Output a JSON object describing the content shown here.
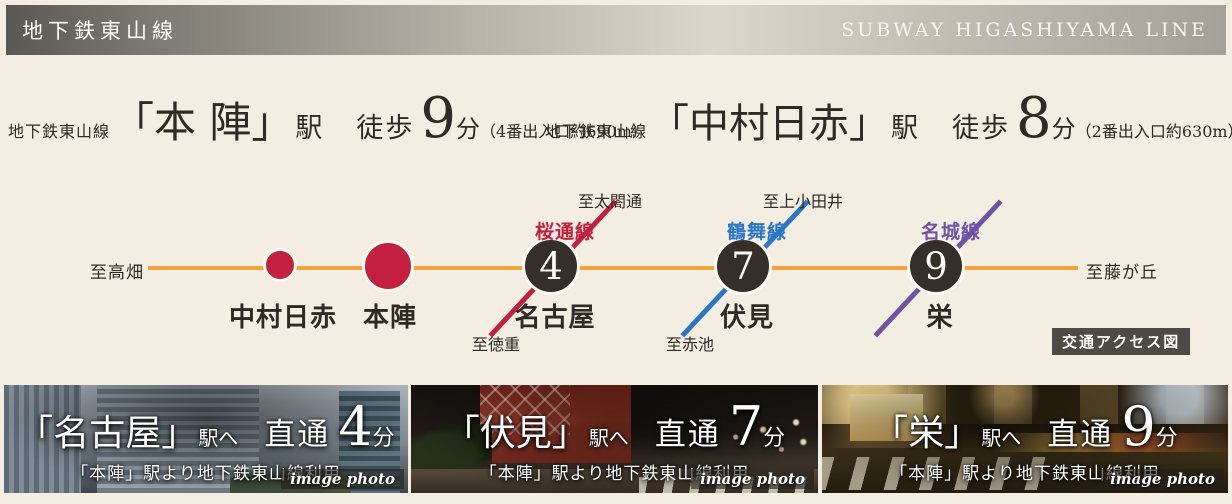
{
  "header": {
    "title_jp": "地下鉄東山線",
    "title_en": "SUBWAY HIGASHIYAMA LINE"
  },
  "access": [
    {
      "line_prefix": "地下鉄東山線",
      "station_name": "「本 陣」",
      "station_suffix": "駅",
      "walk": "徒歩",
      "minutes": "9",
      "unit": "分",
      "note": "（4番出入口約690m）"
    },
    {
      "line_prefix": "地下鉄東山線",
      "station_name": "「中村日赤」",
      "station_suffix": "駅",
      "walk": "徒歩",
      "minutes": "8",
      "unit": "分",
      "note": "（2番出入口約630m）"
    }
  ],
  "diagram": {
    "caption": "交通アクセス図",
    "terminal_left": "至高畑",
    "terminal_right": "至藤が丘",
    "main_line_color": "#f2a53c",
    "station_dot_red": "#c31f3e",
    "station_dot_dark": "#362e29",
    "stations": [
      {
        "name": "中村日赤"
      },
      {
        "name": "本陣"
      },
      {
        "name": "名古屋",
        "number": "4"
      },
      {
        "name": "伏見",
        "number": "7"
      },
      {
        "name": "栄",
        "number": "9"
      }
    ],
    "transfers": [
      {
        "line_name": "桜通線",
        "color": "#c31f3e",
        "to_upper": "至太閤通",
        "to_lower": "至徳重"
      },
      {
        "line_name": "鶴舞線",
        "color": "#2b76c7",
        "to_upper": "至上小田井",
        "to_lower": "至赤池"
      },
      {
        "line_name": "名城線",
        "color": "#7052a7"
      }
    ]
  },
  "cards": [
    {
      "station": "「名古屋」",
      "suffix": "駅へ",
      "direct_label": "直通",
      "minutes": "4",
      "unit": "分",
      "subtitle": "「本陣」駅より地下鉄東山線利用",
      "photo_label": "image photo"
    },
    {
      "station": "「伏見」",
      "suffix": "駅へ",
      "direct_label": "直通",
      "minutes": "7",
      "unit": "分",
      "subtitle": "「本陣」駅より地下鉄東山線利用",
      "photo_label": "image photo"
    },
    {
      "station": "「栄」",
      "suffix": "駅へ",
      "direct_label": "直通",
      "minutes": "9",
      "unit": "分",
      "subtitle": "「本陣」駅より地下鉄東山線利用",
      "photo_label": "image photo"
    }
  ]
}
